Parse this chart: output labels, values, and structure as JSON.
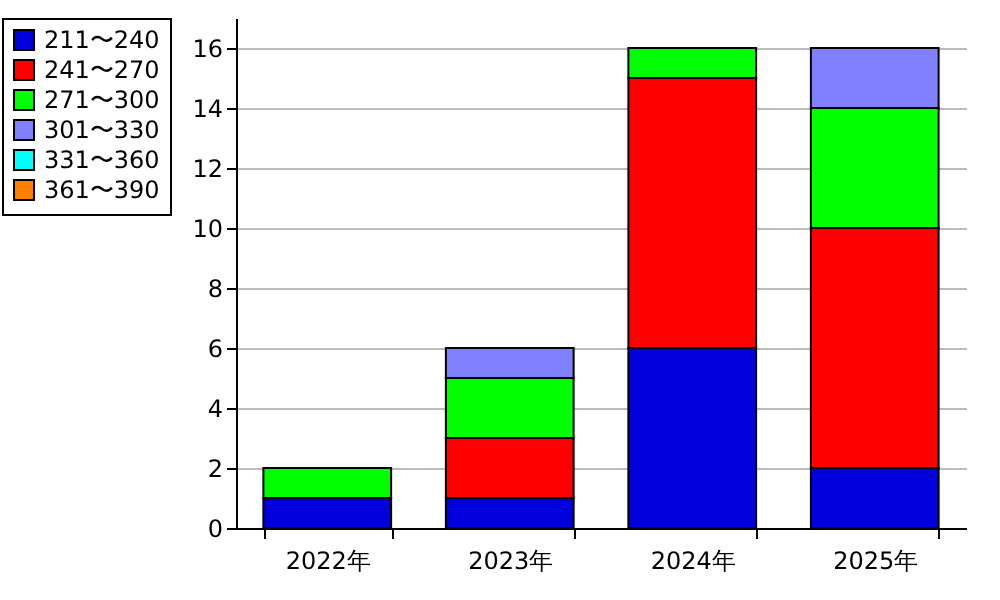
{
  "chart_data": {
    "type": "bar",
    "stacked": true,
    "categories": [
      "2022年",
      "2023年",
      "2024年",
      "2025年"
    ],
    "series": [
      {
        "name": "211〜240",
        "color": "#0000dd",
        "values": [
          1,
          1,
          6,
          2
        ]
      },
      {
        "name": "241〜270",
        "color": "#ff0000",
        "values": [
          0,
          2,
          9,
          8
        ]
      },
      {
        "name": "271〜300",
        "color": "#00ff00",
        "values": [
          1,
          2,
          1,
          4
        ]
      },
      {
        "name": "301〜330",
        "color": "#8080ff",
        "values": [
          0,
          1,
          0,
          2
        ]
      },
      {
        "name": "331〜360",
        "color": "#00ffff",
        "values": [
          0,
          0,
          0,
          0
        ]
      },
      {
        "name": "361〜390",
        "color": "#ff8000",
        "values": [
          0,
          0,
          0,
          0
        ]
      }
    ],
    "ylim": [
      0,
      17
    ],
    "yticks": [
      0,
      2,
      4,
      6,
      8,
      10,
      12,
      14,
      16
    ],
    "grid": "y",
    "legend": "top left"
  }
}
